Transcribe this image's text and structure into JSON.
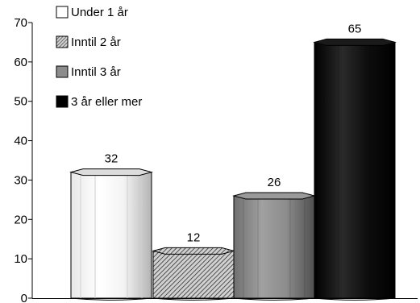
{
  "chart_data": {
    "type": "bar",
    "categories": [
      "Under 1 år",
      "Inntil 2 år",
      "Inntil 3 år",
      "3 år eller mer"
    ],
    "values": [
      32,
      12,
      26,
      65
    ],
    "data_labels": [
      "32",
      "12",
      "26",
      "65"
    ],
    "ylim": [
      0,
      70
    ],
    "yticks": [
      0,
      10,
      20,
      30,
      40,
      50,
      60,
      70
    ],
    "ytick_labels": [
      "0",
      "10",
      "20",
      "30",
      "40",
      "50",
      "60",
      "70"
    ],
    "grid": false,
    "legend": {
      "placement": "top-left",
      "entries": [
        "Under 1 år",
        "Inntil 2 år",
        "Inntil 3 år",
        "3 år eller mer"
      ]
    },
    "fills": [
      "white",
      "hatched",
      "#8c8c8c",
      "#000000"
    ],
    "style": "3d-cylinder"
  }
}
